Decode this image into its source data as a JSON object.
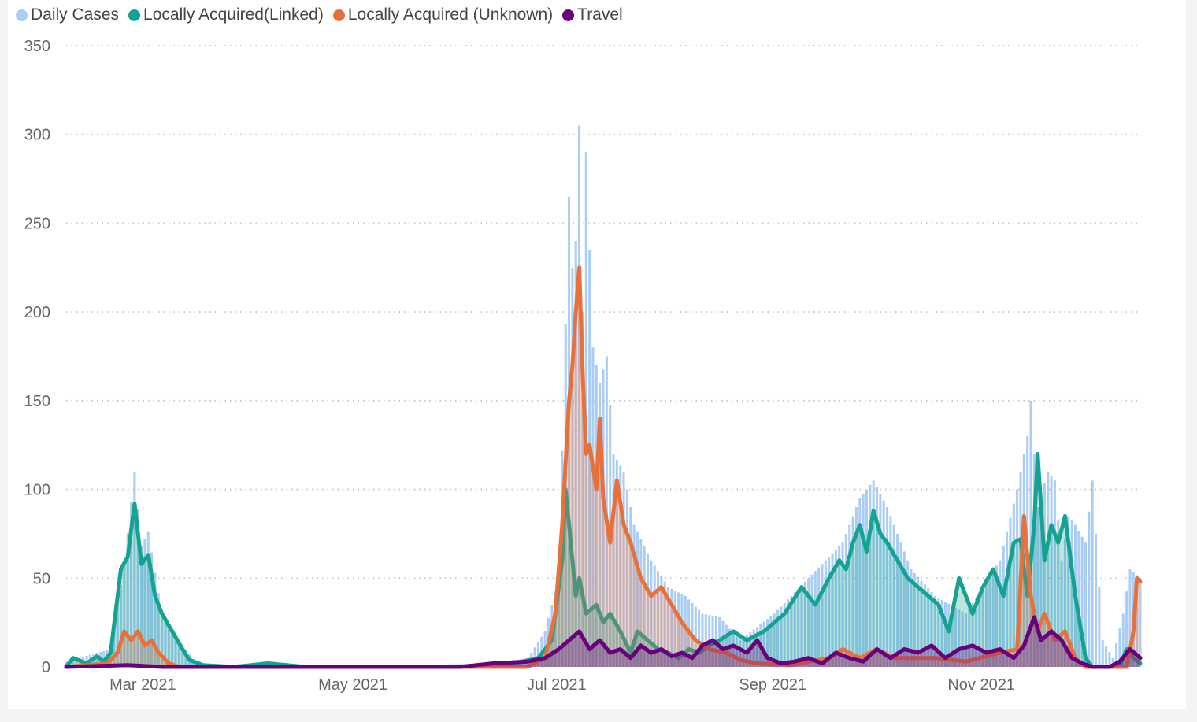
{
  "chart_data": {
    "type": "bar",
    "series": [
      {
        "name": "Daily Cases",
        "mark": "bar",
        "color": "#aacdf6"
      },
      {
        "name": "Locally Acquired(Linked)",
        "mark": "area",
        "color": "#15a391"
      },
      {
        "name": "Locally Acquired (Unknown)",
        "mark": "area",
        "color": "#e8703a"
      },
      {
        "name": "Travel",
        "mark": "area",
        "color": "#6b007b"
      }
    ],
    "x_start": "2021-02-20",
    "x_end": "2021-12-31",
    "y_ticks": [
      "0",
      "50",
      "100",
      "150",
      "200",
      "250",
      "300",
      "350"
    ],
    "ylim": [
      0,
      350
    ],
    "x_ticks": [
      {
        "date": "2021-03-01",
        "label": "Mar 2021"
      },
      {
        "date": "2021-05-01",
        "label": "May 2021"
      },
      {
        "date": "2021-07-01",
        "label": "Jul 2021"
      },
      {
        "date": "2021-09-01",
        "label": "Sep 2021"
      },
      {
        "date": "2021-11-01",
        "label": "Nov 2021"
      }
    ],
    "legend_position": "top-left",
    "grid": true,
    "key_points": {
      "Daily Cases": [
        [
          "2021-02-20",
          3
        ],
        [
          "2021-03-05",
          10
        ],
        [
          "2021-03-09",
          58
        ],
        [
          "2021-03-12",
          110
        ],
        [
          "2021-03-14",
          68
        ],
        [
          "2021-03-16",
          76
        ],
        [
          "2021-03-20",
          30
        ],
        [
          "2021-03-25",
          15
        ],
        [
          "2021-03-30",
          2
        ],
        [
          "2021-04-10",
          1
        ],
        [
          "2021-06-01",
          1
        ],
        [
          "2021-06-25",
          2
        ],
        [
          "2021-07-05",
          5
        ],
        [
          "2021-07-10",
          20
        ],
        [
          "2021-07-14",
          50
        ],
        [
          "2021-07-17",
          265
        ],
        [
          "2021-07-18",
          225
        ],
        [
          "2021-07-19",
          240
        ],
        [
          "2021-07-20",
          305
        ],
        [
          "2021-07-21",
          200
        ],
        [
          "2021-07-22",
          290
        ],
        [
          "2021-07-24",
          180
        ],
        [
          "2021-07-26",
          160
        ],
        [
          "2021-07-28",
          175
        ],
        [
          "2021-07-30",
          120
        ],
        [
          "2021-08-02",
          110
        ],
        [
          "2021-08-05",
          80
        ],
        [
          "2021-08-10",
          60
        ],
        [
          "2021-08-15",
          45
        ],
        [
          "2021-08-20",
          40
        ],
        [
          "2021-08-25",
          30
        ],
        [
          "2021-08-30",
          28
        ],
        [
          "2021-09-05",
          15
        ],
        [
          "2021-09-15",
          30
        ],
        [
          "2021-09-25",
          50
        ],
        [
          "2021-10-05",
          70
        ],
        [
          "2021-10-10",
          95
        ],
        [
          "2021-10-14",
          105
        ],
        [
          "2021-10-18",
          90
        ],
        [
          "2021-10-25",
          55
        ],
        [
          "2021-11-01",
          40
        ],
        [
          "2021-11-10",
          30
        ],
        [
          "2021-11-20",
          60
        ],
        [
          "2021-11-25",
          100
        ],
        [
          "2021-11-28",
          130
        ],
        [
          "2021-11-29",
          150
        ],
        [
          "2021-12-01",
          90
        ],
        [
          "2021-12-04",
          110
        ],
        [
          "2021-12-06",
          105
        ],
        [
          "2021-12-08",
          60
        ],
        [
          "2021-12-10",
          85
        ],
        [
          "2021-12-12",
          80
        ],
        [
          "2021-12-15",
          70
        ],
        [
          "2021-12-17",
          105
        ],
        [
          "2021-12-20",
          15
        ],
        [
          "2021-12-23",
          5
        ],
        [
          "2021-12-26",
          30
        ],
        [
          "2021-12-28",
          55
        ],
        [
          "2021-12-31",
          50
        ]
      ],
      "Locally Acquired(Linked)": [
        [
          "2021-02-20",
          0
        ],
        [
          "2021-02-22",
          5
        ],
        [
          "2021-02-26",
          2
        ],
        [
          "2021-03-01",
          6
        ],
        [
          "2021-03-03",
          3
        ],
        [
          "2021-03-05",
          8
        ],
        [
          "2021-03-08",
          55
        ],
        [
          "2021-03-10",
          62
        ],
        [
          "2021-03-12",
          92
        ],
        [
          "2021-03-14",
          58
        ],
        [
          "2021-03-16",
          63
        ],
        [
          "2021-03-18",
          40
        ],
        [
          "2021-03-20",
          30
        ],
        [
          "2021-03-23",
          20
        ],
        [
          "2021-03-26",
          10
        ],
        [
          "2021-03-28",
          4
        ],
        [
          "2021-04-01",
          1
        ],
        [
          "2021-04-10",
          0
        ],
        [
          "2021-04-20",
          2
        ],
        [
          "2021-05-01",
          0
        ],
        [
          "2021-06-20",
          0
        ],
        [
          "2021-07-01",
          2
        ],
        [
          "2021-07-08",
          5
        ],
        [
          "2021-07-12",
          15
        ],
        [
          "2021-07-15",
          60
        ],
        [
          "2021-07-16",
          100
        ],
        [
          "2021-07-17",
          80
        ],
        [
          "2021-07-19",
          40
        ],
        [
          "2021-07-20",
          50
        ],
        [
          "2021-07-22",
          30
        ],
        [
          "2021-07-25",
          35
        ],
        [
          "2021-07-27",
          25
        ],
        [
          "2021-07-29",
          30
        ],
        [
          "2021-08-01",
          20
        ],
        [
          "2021-08-04",
          8
        ],
        [
          "2021-08-06",
          20
        ],
        [
          "2021-08-09",
          15
        ],
        [
          "2021-08-12",
          10
        ],
        [
          "2021-08-15",
          8
        ],
        [
          "2021-08-18",
          5
        ],
        [
          "2021-08-21",
          10
        ],
        [
          "2021-08-24",
          8
        ],
        [
          "2021-08-27",
          12
        ],
        [
          "2021-08-30",
          15
        ],
        [
          "2021-09-03",
          20
        ],
        [
          "2021-09-07",
          15
        ],
        [
          "2021-09-12",
          20
        ],
        [
          "2021-09-18",
          30
        ],
        [
          "2021-09-23",
          45
        ],
        [
          "2021-09-27",
          35
        ],
        [
          "2021-10-01",
          50
        ],
        [
          "2021-10-04",
          60
        ],
        [
          "2021-10-06",
          55
        ],
        [
          "2021-10-08",
          70
        ],
        [
          "2021-10-10",
          80
        ],
        [
          "2021-10-12",
          65
        ],
        [
          "2021-10-14",
          88
        ],
        [
          "2021-10-16",
          75
        ],
        [
          "2021-10-18",
          70
        ],
        [
          "2021-10-21",
          60
        ],
        [
          "2021-10-24",
          50
        ],
        [
          "2021-10-27",
          45
        ],
        [
          "2021-10-30",
          40
        ],
        [
          "2021-11-02",
          35
        ],
        [
          "2021-11-05",
          20
        ],
        [
          "2021-11-08",
          50
        ],
        [
          "2021-11-12",
          30
        ],
        [
          "2021-11-15",
          45
        ],
        [
          "2021-11-18",
          55
        ],
        [
          "2021-11-21",
          40
        ],
        [
          "2021-11-24",
          70
        ],
        [
          "2021-11-26",
          72
        ],
        [
          "2021-11-28",
          40
        ],
        [
          "2021-11-30",
          80
        ],
        [
          "2021-12-01",
          120
        ],
        [
          "2021-12-03",
          60
        ],
        [
          "2021-12-05",
          80
        ],
        [
          "2021-12-07",
          70
        ],
        [
          "2021-12-09",
          85
        ],
        [
          "2021-12-12",
          40
        ],
        [
          "2021-12-15",
          5
        ],
        [
          "2021-12-17",
          0
        ],
        [
          "2021-12-25",
          0
        ],
        [
          "2021-12-27",
          10
        ],
        [
          "2021-12-29",
          5
        ],
        [
          "2021-12-31",
          2
        ]
      ],
      "Locally Acquired (Unknown)": [
        [
          "2021-02-20",
          0
        ],
        [
          "2021-03-04",
          2
        ],
        [
          "2021-03-07",
          8
        ],
        [
          "2021-03-09",
          20
        ],
        [
          "2021-03-11",
          15
        ],
        [
          "2021-03-13",
          20
        ],
        [
          "2021-03-15",
          12
        ],
        [
          "2021-03-17",
          15
        ],
        [
          "2021-03-19",
          8
        ],
        [
          "2021-03-22",
          2
        ],
        [
          "2021-03-25",
          0
        ],
        [
          "2021-07-05",
          0
        ],
        [
          "2021-07-10",
          5
        ],
        [
          "2021-07-13",
          30
        ],
        [
          "2021-07-15",
          80
        ],
        [
          "2021-07-17",
          150
        ],
        [
          "2021-07-18",
          170
        ],
        [
          "2021-07-19",
          200
        ],
        [
          "2021-07-20",
          225
        ],
        [
          "2021-07-21",
          165
        ],
        [
          "2021-07-22",
          120
        ],
        [
          "2021-07-23",
          125
        ],
        [
          "2021-07-25",
          100
        ],
        [
          "2021-07-26",
          140
        ],
        [
          "2021-07-27",
          95
        ],
        [
          "2021-07-29",
          70
        ],
        [
          "2021-07-31",
          105
        ],
        [
          "2021-08-02",
          80
        ],
        [
          "2021-08-04",
          70
        ],
        [
          "2021-08-07",
          50
        ],
        [
          "2021-08-10",
          40
        ],
        [
          "2021-08-13",
          45
        ],
        [
          "2021-08-16",
          35
        ],
        [
          "2021-08-19",
          25
        ],
        [
          "2021-08-23",
          15
        ],
        [
          "2021-08-27",
          10
        ],
        [
          "2021-09-01",
          8
        ],
        [
          "2021-09-05",
          4
        ],
        [
          "2021-09-10",
          2
        ],
        [
          "2021-09-20",
          1
        ],
        [
          "2021-10-01",
          5
        ],
        [
          "2021-10-05",
          10
        ],
        [
          "2021-10-10",
          5
        ],
        [
          "2021-10-15",
          10
        ],
        [
          "2021-10-20",
          5
        ],
        [
          "2021-11-01",
          5
        ],
        [
          "2021-11-10",
          3
        ],
        [
          "2021-11-20",
          8
        ],
        [
          "2021-11-25",
          10
        ],
        [
          "2021-11-27",
          85
        ],
        [
          "2021-11-29",
          40
        ],
        [
          "2021-12-01",
          20
        ],
        [
          "2021-12-03",
          30
        ],
        [
          "2021-12-06",
          15
        ],
        [
          "2021-12-09",
          20
        ],
        [
          "2021-12-12",
          5
        ],
        [
          "2021-12-15",
          0
        ],
        [
          "2021-12-27",
          0
        ],
        [
          "2021-12-29",
          20
        ],
        [
          "2021-12-30",
          50
        ],
        [
          "2021-12-31",
          48
        ]
      ],
      "Travel": [
        [
          "2021-02-20",
          0
        ],
        [
          "2021-03-10",
          1
        ],
        [
          "2021-03-20",
          0
        ],
        [
          "2021-05-01",
          0
        ],
        [
          "2021-06-15",
          0
        ],
        [
          "2021-06-25",
          2
        ],
        [
          "2021-07-05",
          3
        ],
        [
          "2021-07-10",
          5
        ],
        [
          "2021-07-14",
          10
        ],
        [
          "2021-07-17",
          15
        ],
        [
          "2021-07-20",
          20
        ],
        [
          "2021-07-23",
          10
        ],
        [
          "2021-07-26",
          15
        ],
        [
          "2021-07-29",
          8
        ],
        [
          "2021-08-01",
          10
        ],
        [
          "2021-08-04",
          5
        ],
        [
          "2021-08-07",
          12
        ],
        [
          "2021-08-10",
          8
        ],
        [
          "2021-08-13",
          10
        ],
        [
          "2021-08-16",
          6
        ],
        [
          "2021-08-19",
          8
        ],
        [
          "2021-08-22",
          5
        ],
        [
          "2021-08-25",
          12
        ],
        [
          "2021-08-28",
          15
        ],
        [
          "2021-08-31",
          10
        ],
        [
          "2021-09-03",
          12
        ],
        [
          "2021-09-07",
          8
        ],
        [
          "2021-09-10",
          15
        ],
        [
          "2021-09-13",
          5
        ],
        [
          "2021-09-17",
          2
        ],
        [
          "2021-09-21",
          3
        ],
        [
          "2021-09-25",
          5
        ],
        [
          "2021-09-29",
          2
        ],
        [
          "2021-10-03",
          8
        ],
        [
          "2021-10-07",
          5
        ],
        [
          "2021-10-11",
          3
        ],
        [
          "2021-10-15",
          10
        ],
        [
          "2021-10-19",
          5
        ],
        [
          "2021-10-23",
          10
        ],
        [
          "2021-10-27",
          8
        ],
        [
          "2021-10-31",
          12
        ],
        [
          "2021-11-04",
          5
        ],
        [
          "2021-11-08",
          10
        ],
        [
          "2021-11-12",
          12
        ],
        [
          "2021-11-16",
          8
        ],
        [
          "2021-11-20",
          10
        ],
        [
          "2021-11-24",
          5
        ],
        [
          "2021-11-27",
          12
        ],
        [
          "2021-11-30",
          28
        ],
        [
          "2021-12-02",
          15
        ],
        [
          "2021-12-05",
          20
        ],
        [
          "2021-12-08",
          15
        ],
        [
          "2021-12-11",
          5
        ],
        [
          "2021-12-14",
          2
        ],
        [
          "2021-12-17",
          0
        ],
        [
          "2021-12-22",
          0
        ],
        [
          "2021-12-25",
          3
        ],
        [
          "2021-12-28",
          10
        ],
        [
          "2021-12-31",
          5
        ]
      ]
    }
  }
}
